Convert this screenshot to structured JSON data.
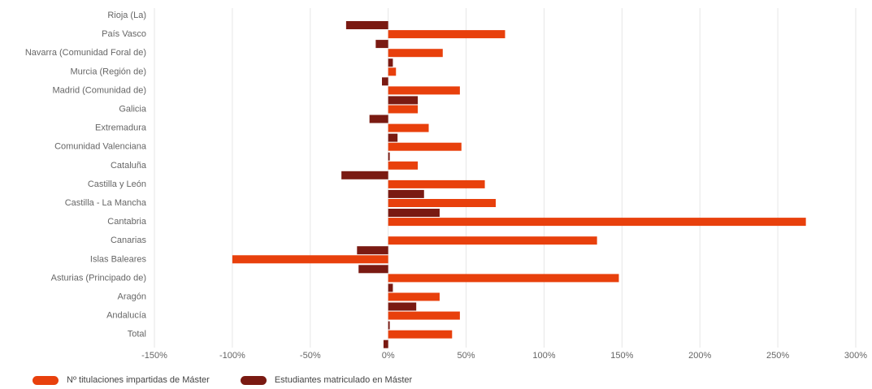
{
  "chart_data": {
    "type": "bar",
    "orientation": "horizontal",
    "categories": [
      "Rioja (La)",
      "País Vasco",
      "Navarra (Comunidad Foral de)",
      "Murcia (Región de)",
      "Madrid (Comunidad de)",
      "Galicia",
      "Extremadura",
      "Comunidad Valenciana",
      "Cataluña",
      "Castilla y León",
      "Castilla - La Mancha",
      "Cantabria",
      "Canarias",
      "Islas Baleares",
      "Asturias (Principado de)",
      "Aragón",
      "Andalucía",
      "Total"
    ],
    "series": [
      {
        "name": "Nº titulaciones impartidas de Máster",
        "color": "#e8400c",
        "values": [
          0,
          75,
          35,
          5,
          46,
          19,
          26,
          47,
          19,
          62,
          69,
          268,
          134,
          -100,
          148,
          33,
          46,
          41
        ]
      },
      {
        "name": "Estudiantes matriculado en Máster",
        "color": "#7a1a12",
        "values": [
          -27,
          -8,
          3,
          -4,
          19,
          -12,
          6,
          1,
          -30,
          23,
          33,
          0,
          -20,
          -19,
          3,
          18,
          1,
          -3
        ]
      }
    ],
    "xlim": [
      -150,
      300
    ],
    "xticks": [
      "-150%",
      "-100%",
      "-50%",
      "0%",
      "50%",
      "100%",
      "150%",
      "200%",
      "250%",
      "300%"
    ],
    "xtick_values": [
      -150,
      -100,
      -50,
      0,
      50,
      100,
      150,
      200,
      250,
      300
    ],
    "grid": "vertical",
    "legend_position": "bottom-left"
  }
}
